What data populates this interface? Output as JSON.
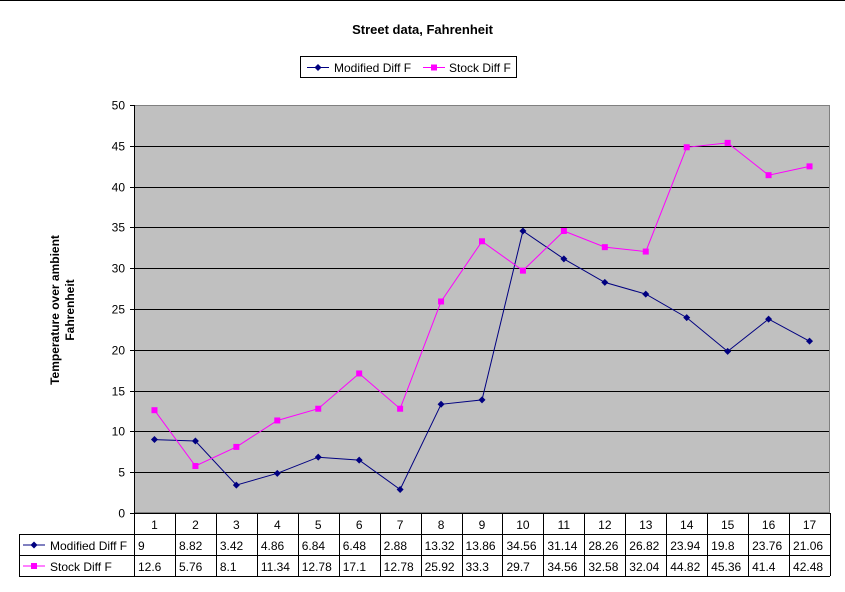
{
  "chart_data": {
    "type": "line",
    "title": "Street data, Fahrenheit",
    "ylabel": "Temperature over ambient Fahrenheit",
    "ylabel_lines": [
      "Temperature over ambient",
      "Fahrenheit"
    ],
    "xlabel": "",
    "ylim": [
      0,
      50
    ],
    "yticks": [
      0,
      5,
      10,
      15,
      20,
      25,
      30,
      35,
      40,
      45,
      50
    ],
    "grid": true,
    "legend": "top-center",
    "categories": [
      "1",
      "2",
      "3",
      "4",
      "5",
      "6",
      "7",
      "8",
      "9",
      "10",
      "11",
      "12",
      "13",
      "14",
      "15",
      "16",
      "17"
    ],
    "series": [
      {
        "name": "Modified Diff F",
        "color": "#000080",
        "marker": "diamond",
        "values": [
          9,
          8.82,
          3.42,
          4.86,
          6.84,
          6.48,
          2.88,
          13.32,
          13.86,
          34.56,
          31.14,
          28.26,
          26.82,
          23.94,
          19.8,
          23.76,
          21.06
        ],
        "labels": [
          "9",
          "8.82",
          "3.42",
          "4.86",
          "6.84",
          "6.48",
          "2.88",
          "13.32",
          "13.86",
          "34.56",
          "31.14",
          "28.26",
          "26.82",
          "23.94",
          "19.8",
          "23.76",
          "21.06"
        ]
      },
      {
        "name": "Stock Diff F",
        "color": "#ff00ff",
        "marker": "square",
        "values": [
          12.6,
          5.76,
          8.1,
          11.34,
          12.78,
          17.1,
          12.78,
          25.92,
          33.3,
          29.7,
          34.56,
          32.58,
          32.04,
          44.82,
          45.36,
          41.4,
          42.48
        ],
        "labels": [
          "12.6",
          "5.76",
          "8.1",
          "11.34",
          "12.78",
          "17.1",
          "12.78",
          "25.92",
          "33.3",
          "29.7",
          "34.56",
          "32.58",
          "32.04",
          "44.82",
          "45.36",
          "41.4",
          "42.48"
        ]
      }
    ],
    "plot_background": "#c0c0c0"
  }
}
